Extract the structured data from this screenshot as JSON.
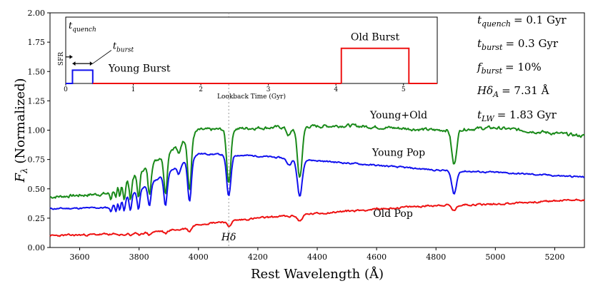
{
  "chart_data": {
    "type": "line",
    "title": "",
    "xlabel": "Rest Wavelength (Å)",
    "ylabel": "F_λ (Normalized)",
    "xlim": [
      3500,
      5300
    ],
    "ylim": [
      0.0,
      2.0
    ],
    "xticks": [
      3600,
      3800,
      4000,
      4200,
      4400,
      4600,
      4800,
      5000,
      5200
    ],
    "yticks": [
      0.0,
      0.25,
      0.5,
      0.75,
      1.0,
      1.25,
      1.5,
      1.75,
      2.0
    ],
    "series": [
      {
        "name": "Young+Old",
        "color": "#1a8a1a",
        "continuum": [
          [
            3500,
            0.43
          ],
          [
            3700,
            0.46
          ],
          [
            3900,
            0.82
          ],
          [
            4000,
            1.0
          ],
          [
            4200,
            1.02
          ],
          [
            4500,
            1.04
          ],
          [
            4800,
            1.0
          ],
          [
            5000,
            1.02
          ],
          [
            5300,
            0.95
          ]
        ],
        "noise": 0.025,
        "seed": 7
      },
      {
        "name": "Young Pop",
        "color": "#1111ee",
        "continuum": [
          [
            3500,
            0.33
          ],
          [
            3700,
            0.34
          ],
          [
            3900,
            0.64
          ],
          [
            4000,
            0.8
          ],
          [
            4200,
            0.78
          ],
          [
            4500,
            0.72
          ],
          [
            4800,
            0.66
          ],
          [
            5000,
            0.64
          ],
          [
            5300,
            0.6
          ]
        ],
        "noise": 0.012,
        "seed": 11
      },
      {
        "name": "Old Pop",
        "color": "#ee1111",
        "continuum": [
          [
            3500,
            0.1
          ],
          [
            3800,
            0.12
          ],
          [
            3950,
            0.16
          ],
          [
            4000,
            0.2
          ],
          [
            4200,
            0.25
          ],
          [
            4500,
            0.31
          ],
          [
            4800,
            0.36
          ],
          [
            5000,
            0.37
          ],
          [
            5300,
            0.41
          ]
        ],
        "noise": 0.015,
        "seed": 23
      }
    ],
    "absorption_lines": [
      {
        "w": 3705,
        "depth": 0.12,
        "width": 3
      },
      {
        "w": 3722,
        "depth": 0.16,
        "width": 3
      },
      {
        "w": 3735,
        "depth": 0.2,
        "width": 3
      },
      {
        "w": 3750,
        "depth": 0.25,
        "width": 3.5
      },
      {
        "w": 3771,
        "depth": 0.3,
        "width": 4
      },
      {
        "w": 3798,
        "depth": 0.33,
        "width": 4.5
      },
      {
        "w": 3835,
        "depth": 0.36,
        "width": 5
      },
      {
        "w": 3889,
        "depth": 0.42,
        "width": 5.5
      },
      {
        "w": 3934,
        "depth": 0.1,
        "width": 5
      },
      {
        "w": 3970,
        "depth": 0.48,
        "width": 6
      },
      {
        "w": 4102,
        "depth": 0.45,
        "width": 7
      },
      {
        "w": 4305,
        "depth": 0.07,
        "width": 8
      },
      {
        "w": 4341,
        "depth": 0.42,
        "width": 8
      },
      {
        "w": 4861,
        "depth": 0.3,
        "width": 8
      }
    ],
    "hdelta_line": {
      "x": 4102,
      "label": "Hδ"
    },
    "annotations": [
      {
        "text": "Young+Old",
        "series": "Young+Old",
        "color": "#1a8a1a"
      },
      {
        "text": "Young Pop",
        "series": "Young Pop",
        "color": "#1111ee"
      },
      {
        "text": "Old Pop",
        "series": "Old Pop",
        "color": "#ee1111"
      }
    ],
    "params": [
      {
        "sym": "t",
        "sub": "quench",
        "val": "= 0.1 Gyr"
      },
      {
        "sym": "t",
        "sub": "burst",
        "val": "= 0.3 Gyr"
      },
      {
        "sym": "f",
        "sub": "burst",
        "val": "= 10%"
      },
      {
        "sym": "Hδ",
        "sub": "A",
        "val": "= 7.31 Å"
      },
      {
        "sym": "t",
        "sub": "LW",
        "val": "= 1.83 Gyr"
      }
    ],
    "inset": {
      "type": "line",
      "xlabel": "Lookback Time (Gyr)",
      "ylabel": "SFR",
      "xlim": [
        0,
        5.5
      ],
      "ylim": [
        0,
        1
      ],
      "xticks": [
        0,
        1,
        2,
        3,
        4,
        5
      ],
      "young_burst": {
        "label": "Young Burst",
        "start": 0.1,
        "end": 0.4,
        "level": 0.2,
        "color": "#1111ee"
      },
      "old_burst": {
        "label": "Old Burst",
        "start": 4.08,
        "end": 5.08,
        "level": 0.53,
        "color": "#ee1111"
      },
      "t_quench_label": "t_quench",
      "t_burst_label": "t_burst"
    }
  }
}
